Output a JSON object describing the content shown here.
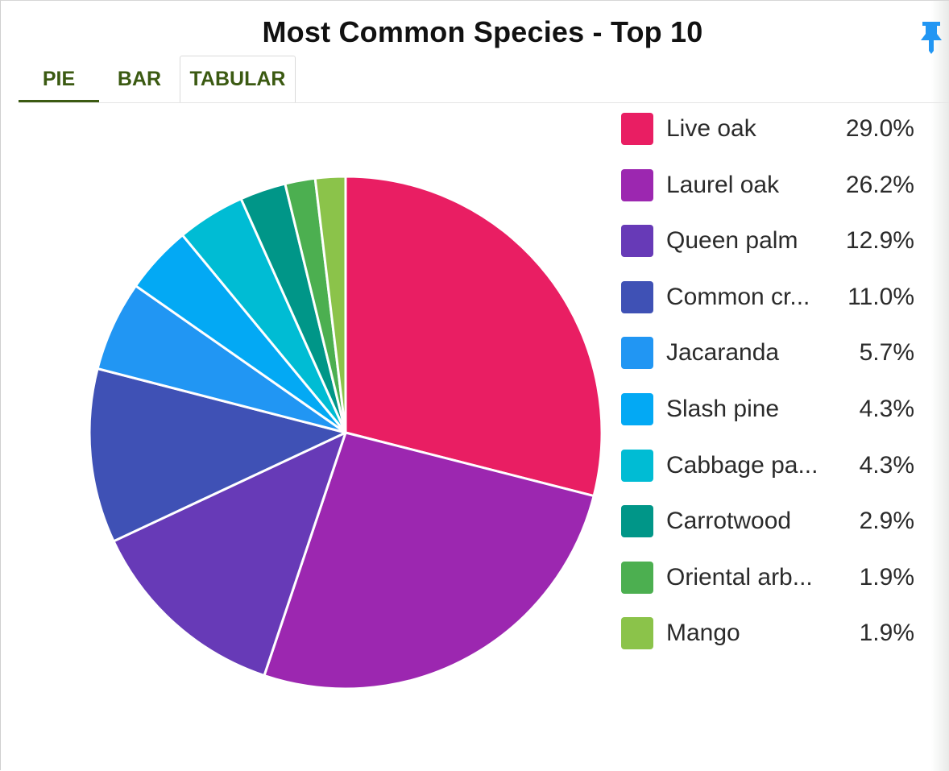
{
  "widget": {
    "title": "Most Common Species - Top 10"
  },
  "tabs": [
    {
      "label": "PIE",
      "active": true
    },
    {
      "label": "BAR",
      "active": false
    },
    {
      "label": "TABULAR",
      "active": false
    }
  ],
  "icons": {
    "pin": "pin-icon"
  },
  "colors": {
    "tab_text": "#3b5a12",
    "pin": "#2196f3"
  },
  "chart_data": {
    "type": "pie",
    "title": "Most Common Species - Top 10",
    "legend_position": "right",
    "categories": [
      "Live oak",
      "Laurel oak",
      "Queen palm",
      "Common cr...",
      "Jacaranda",
      "Slash pine",
      "Cabbage pa...",
      "Carrotwood",
      "Oriental arb...",
      "Mango"
    ],
    "values": [
      29.0,
      26.2,
      12.9,
      11.0,
      5.7,
      4.3,
      4.3,
      2.9,
      1.9,
      1.9
    ],
    "value_labels": [
      "29.0%",
      "26.2%",
      "12.9%",
      "11.0%",
      "5.7%",
      "4.3%",
      "4.3%",
      "2.9%",
      "1.9%",
      "1.9%"
    ],
    "colors": [
      "#e91e63",
      "#9c27b0",
      "#673ab7",
      "#3f51b5",
      "#2196f3",
      "#03a9f4",
      "#00bcd4",
      "#009688",
      "#4caf50",
      "#8bc34a"
    ]
  }
}
